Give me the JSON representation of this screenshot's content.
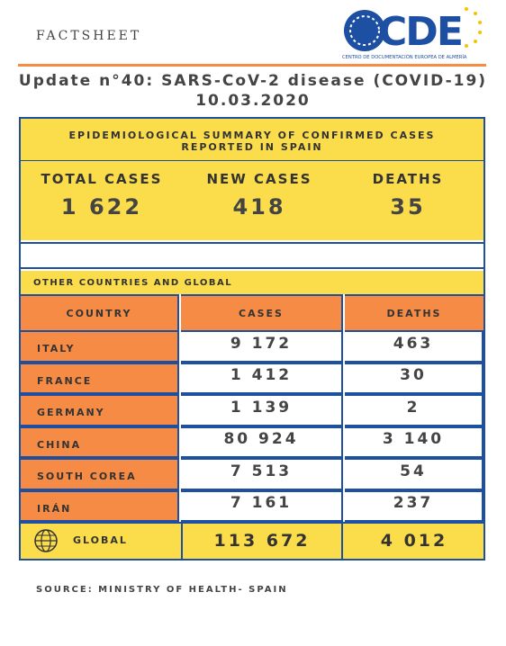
{
  "header": {
    "label": "FACTSHEET",
    "logo_text": "CDE",
    "logo_subtitle": "CENTRO DE DOCUMENTACIÓN EUROPEA DE ALMERÍA"
  },
  "title": "Update n°40: SARS-CoV-2 disease (COVID-19)",
  "date": "10.03.2020",
  "summary": {
    "heading": [
      "EPIDEMIOLOGICAL SUMMARY OF CONFIRMED CASES",
      "REPORTED IN SPAIN"
    ],
    "columns": [
      "TOTAL CASES",
      "NEW CASES",
      "DEATHS"
    ],
    "values": [
      "1 622",
      "418",
      "35"
    ]
  },
  "table": {
    "section": "OTHER COUNTRIES AND GLOBAL",
    "columns": [
      "COUNTRY",
      "CASES",
      "DEATHS"
    ],
    "rows": [
      [
        "ITALY",
        "9 172",
        "463"
      ],
      [
        "FRANCE",
        "1 412",
        "30"
      ],
      [
        "GERMANY",
        "1 139",
        "2"
      ],
      [
        "CHINA",
        "80 924",
        "3 140"
      ],
      [
        "SOUTH COREA",
        "7 513",
        "54"
      ],
      [
        "IRÁN",
        "7 161",
        "237"
      ]
    ],
    "global": {
      "label": "GLOBAL",
      "cases": "113 672",
      "deaths": "4 012"
    }
  },
  "source": "SOURCE: MINISTRY OF HEALTH- SPAIN"
}
